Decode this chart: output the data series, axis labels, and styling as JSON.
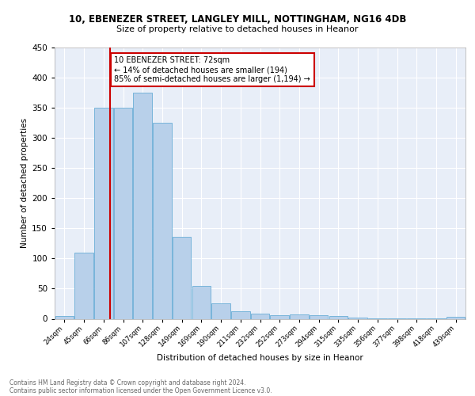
{
  "title1": "10, EBENEZER STREET, LANGLEY MILL, NOTTINGHAM, NG16 4DB",
  "title2": "Size of property relative to detached houses in Heanor",
  "xlabel": "Distribution of detached houses by size in Heanor",
  "ylabel": "Number of detached properties",
  "bar_categories": [
    "24sqm",
    "45sqm",
    "66sqm",
    "86sqm",
    "107sqm",
    "128sqm",
    "149sqm",
    "169sqm",
    "190sqm",
    "211sqm",
    "232sqm",
    "252sqm",
    "273sqm",
    "294sqm",
    "315sqm",
    "335sqm",
    "356sqm",
    "377sqm",
    "398sqm",
    "418sqm",
    "439sqm"
  ],
  "bar_values": [
    5,
    110,
    350,
    350,
    375,
    325,
    136,
    55,
    25,
    13,
    8,
    6,
    7,
    6,
    4,
    2,
    1,
    1,
    1,
    1,
    3
  ],
  "bar_color": "#b8d0ea",
  "bar_edge_color": "#6aaed6",
  "annotation_text": "10 EBENEZER STREET: 72sqm\n← 14% of detached houses are smaller (194)\n85% of semi-detached houses are larger (1,194) →",
  "annotation_box_color": "#ffffff",
  "annotation_box_edge": "#cc0000",
  "vline_color": "#cc0000",
  "footer1": "Contains HM Land Registry data © Crown copyright and database right 2024.",
  "footer2": "Contains public sector information licensed under the Open Government Licence v3.0.",
  "ylim": [
    0,
    450
  ],
  "plot_bg": "#e8eef8",
  "fig_bg": "#ffffff",
  "grid_color": "#ffffff"
}
